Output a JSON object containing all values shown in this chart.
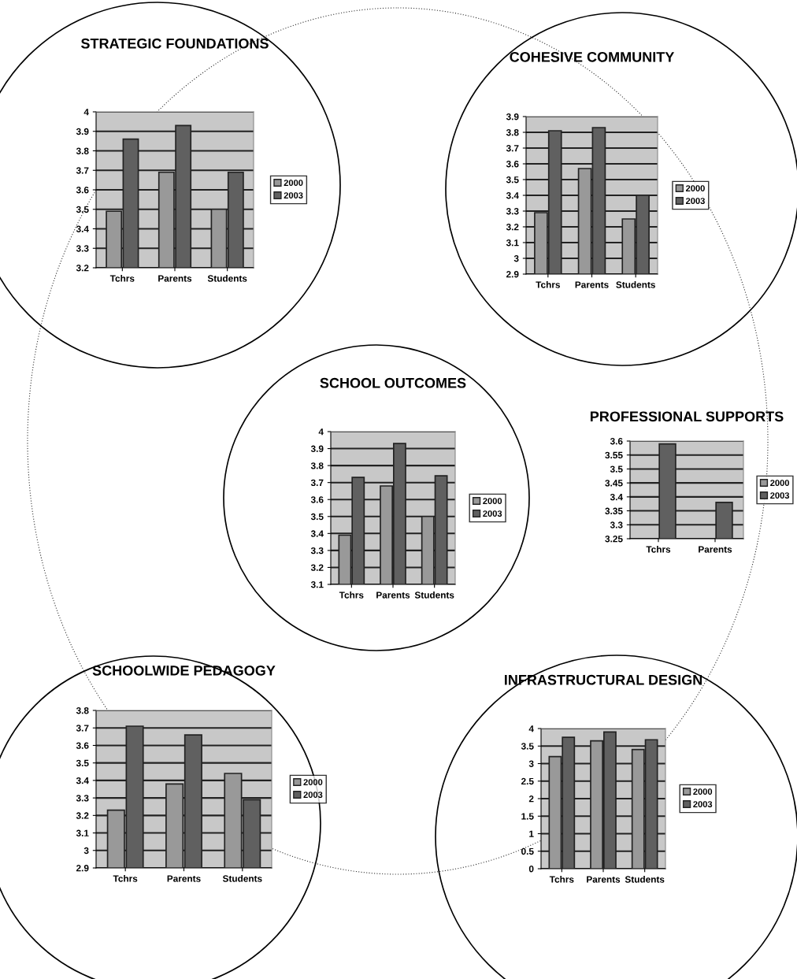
{
  "chart_data": [
    {
      "type": "bar",
      "title": "STRATEGIC FOUNDATIONS",
      "categories": [
        "Tchrs",
        "Parents",
        "Students"
      ],
      "series": [
        {
          "name": "2000",
          "color": "#999999",
          "values": [
            3.49,
            3.69,
            3.5
          ]
        },
        {
          "name": "2003",
          "color": "#606060",
          "values": [
            3.86,
            3.93,
            3.69
          ]
        }
      ],
      "ylim": [
        3.2,
        4
      ],
      "yticks": [
        3.2,
        3.3,
        3.4,
        3.5,
        3.6,
        3.7,
        3.8,
        3.9,
        4
      ],
      "grid": "y",
      "legend": "right"
    },
    {
      "type": "bar",
      "title": "COHESIVE COMMUNITY",
      "categories": [
        "Tchrs",
        "Parents",
        "Students"
      ],
      "series": [
        {
          "name": "2000",
          "color": "#999999",
          "values": [
            3.29,
            3.57,
            3.25
          ]
        },
        {
          "name": "2003",
          "color": "#606060",
          "values": [
            3.81,
            3.83,
            3.4
          ]
        }
      ],
      "ylim": [
        2.9,
        3.9
      ],
      "yticks": [
        2.9,
        3,
        3.1,
        3.2,
        3.3,
        3.4,
        3.5,
        3.6,
        3.7,
        3.8,
        3.9
      ],
      "grid": "y",
      "legend": "right"
    },
    {
      "type": "bar",
      "title": "SCHOOL OUTCOMES",
      "categories": [
        "Tchrs",
        "Parents",
        "Students"
      ],
      "series": [
        {
          "name": "2000",
          "color": "#999999",
          "values": [
            3.39,
            3.68,
            3.5
          ]
        },
        {
          "name": "2003",
          "color": "#606060",
          "values": [
            3.73,
            3.93,
            3.74
          ]
        }
      ],
      "ylim": [
        3.1,
        4
      ],
      "yticks": [
        3.1,
        3.2,
        3.3,
        3.4,
        3.5,
        3.6,
        3.7,
        3.8,
        3.9,
        4
      ],
      "grid": "y",
      "legend": "right"
    },
    {
      "type": "bar",
      "title": "PROFESSIONAL SUPPORTS",
      "categories": [
        "Tchrs",
        "Parents"
      ],
      "series": [
        {
          "name": "2000",
          "color": "#999999",
          "values": [
            null,
            null
          ]
        },
        {
          "name": "2003",
          "color": "#606060",
          "values": [
            3.59,
            3.38
          ]
        }
      ],
      "ylim": [
        3.25,
        3.6
      ],
      "yticks": [
        3.25,
        3.3,
        3.35,
        3.4,
        3.45,
        3.5,
        3.55,
        3.6
      ],
      "grid": "y",
      "legend": "right"
    },
    {
      "type": "bar",
      "title": "SCHOOLWIDE PEDAGOGY",
      "categories": [
        "Tchrs",
        "Parents",
        "Students"
      ],
      "series": [
        {
          "name": "2000",
          "color": "#999999",
          "values": [
            3.23,
            3.38,
            3.44
          ]
        },
        {
          "name": "2003",
          "color": "#606060",
          "values": [
            3.71,
            3.66,
            3.29
          ]
        }
      ],
      "ylim": [
        2.9,
        3.8
      ],
      "yticks": [
        2.9,
        3,
        3.1,
        3.2,
        3.3,
        3.4,
        3.5,
        3.6,
        3.7,
        3.8
      ],
      "grid": "y",
      "legend": "right"
    },
    {
      "type": "bar",
      "title": "INFRASTRUCTURAL DESIGN",
      "categories": [
        "Tchrs",
        "Parents",
        "Students"
      ],
      "series": [
        {
          "name": "2000",
          "color": "#999999",
          "values": [
            3.2,
            3.65,
            3.4
          ]
        },
        {
          "name": "2003",
          "color": "#606060",
          "values": [
            3.75,
            3.9,
            3.68
          ]
        }
      ],
      "ylim": [
        0,
        4
      ],
      "yticks": [
        0,
        0.5,
        1,
        1.5,
        2,
        2.5,
        3,
        3.5,
        4
      ],
      "grid": "y",
      "legend": "right"
    }
  ]
}
